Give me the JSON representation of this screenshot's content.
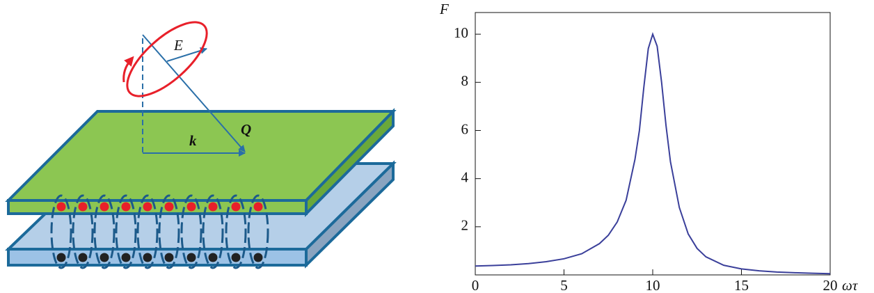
{
  "diagram": {
    "labels": [
      "E",
      "k",
      "Q"
    ]
  },
  "chart_data": {
    "type": "line",
    "y_label": "F",
    "x_label": "ωτ",
    "x": [
      0,
      1,
      2,
      3,
      4,
      5,
      6,
      7,
      7.5,
      8,
      8.5,
      9,
      9.25,
      9.5,
      9.75,
      10,
      10.25,
      10.5,
      10.75,
      11,
      11.5,
      12,
      12.5,
      13,
      14,
      15,
      16,
      17,
      18,
      19,
      20
    ],
    "series": [
      {
        "name": "F",
        "color": "#3a3f9a",
        "values": [
          0.37,
          0.39,
          0.42,
          0.47,
          0.55,
          0.67,
          0.88,
          1.3,
          1.65,
          2.2,
          3.1,
          4.8,
          6.0,
          7.8,
          9.4,
          10.0,
          9.5,
          8.0,
          6.2,
          4.7,
          2.8,
          1.7,
          1.1,
          0.75,
          0.4,
          0.25,
          0.17,
          0.12,
          0.09,
          0.07,
          0.05
        ]
      }
    ],
    "xlim": [
      0,
      20
    ],
    "xticks": [
      0,
      5,
      10,
      15,
      20
    ],
    "ylim": [
      0,
      10.9
    ],
    "yticks": [
      2,
      4,
      6,
      8,
      10
    ]
  }
}
